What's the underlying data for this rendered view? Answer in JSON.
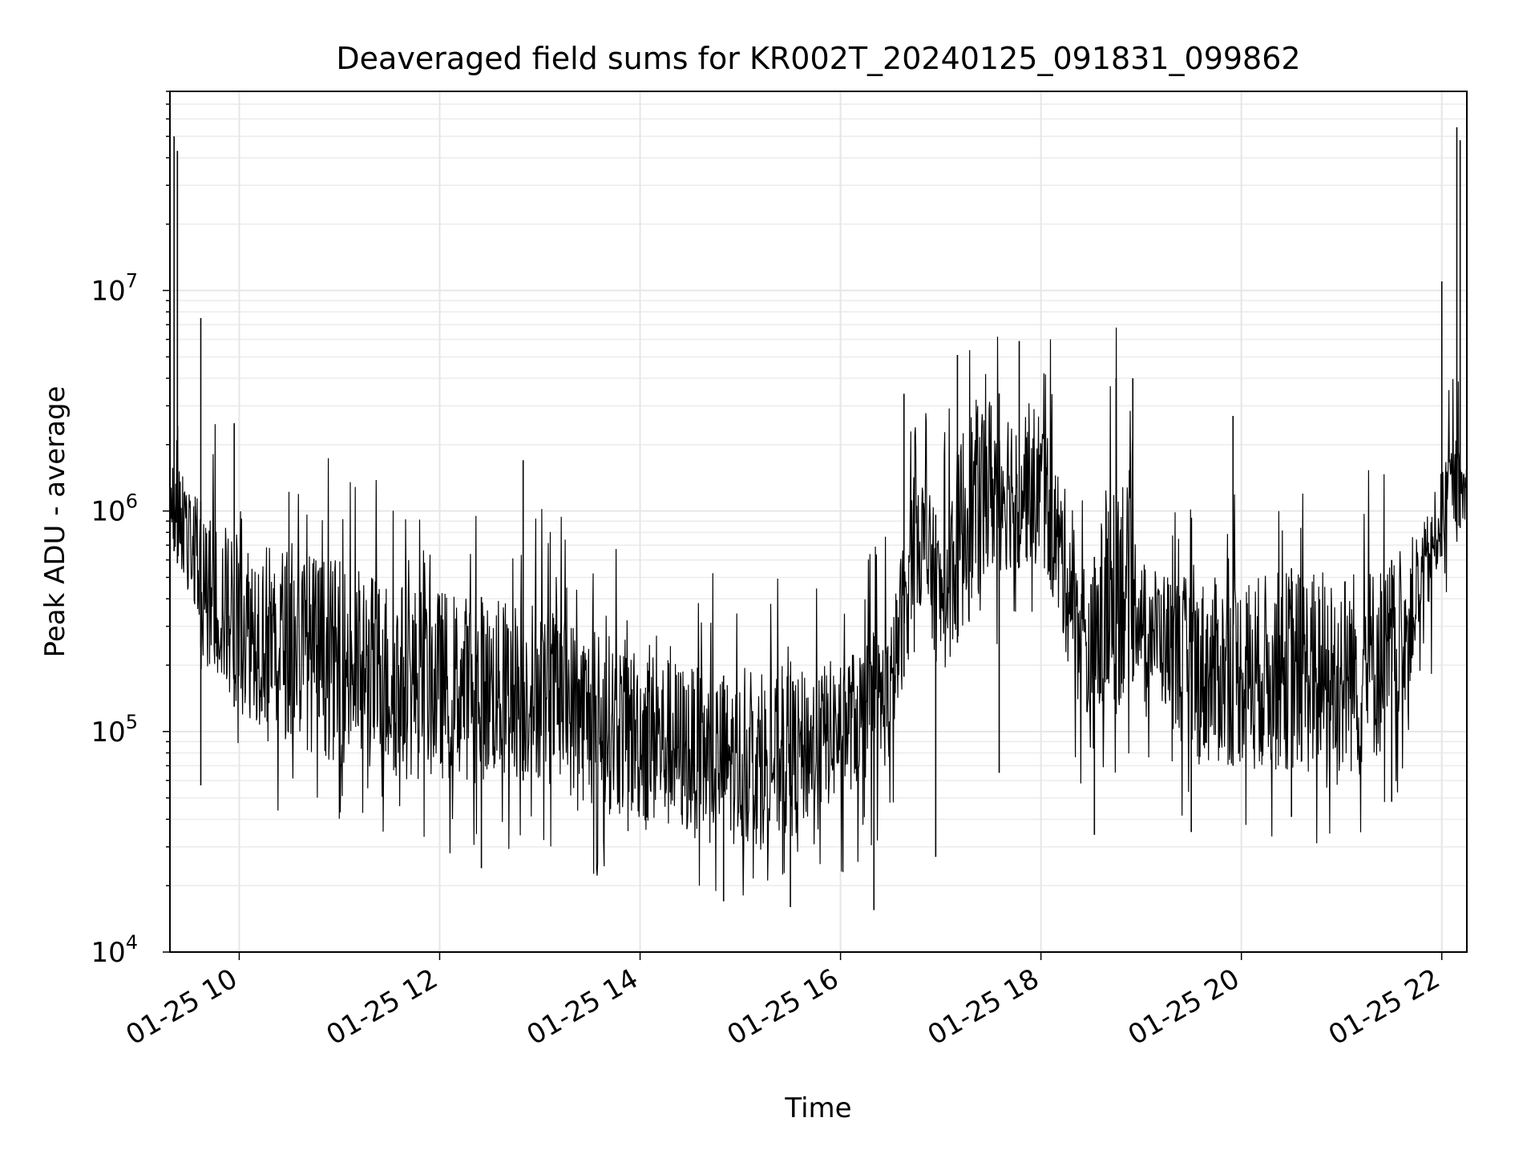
{
  "chart_data": {
    "type": "line",
    "title": "Deaveraged field sums for KR002T_20240125_091831_099862",
    "xlabel": "Time",
    "ylabel": "Peak ADU - average",
    "x_range": [
      "2024-01-25T09:18:31",
      "2024-01-25T22:15:00"
    ],
    "y_range": [
      10000,
      80000000
    ],
    "y_scale": "log",
    "grid": true,
    "line_color": "#000000",
    "x_ticks": [
      {
        "t": "2024-01-25T10:00",
        "label": "01-25 10"
      },
      {
        "t": "2024-01-25T12:00",
        "label": "01-25 12"
      },
      {
        "t": "2024-01-25T14:00",
        "label": "01-25 14"
      },
      {
        "t": "2024-01-25T16:00",
        "label": "01-25 16"
      },
      {
        "t": "2024-01-25T18:00",
        "label": "01-25 18"
      },
      {
        "t": "2024-01-25T20:00",
        "label": "01-25 20"
      },
      {
        "t": "2024-01-25T22:00",
        "label": "01-25 22"
      }
    ],
    "y_ticks": [
      {
        "value": 10000,
        "base": "10",
        "exp": "4"
      },
      {
        "value": 100000,
        "base": "10",
        "exp": "5"
      },
      {
        "value": 1000000,
        "base": "10",
        "exp": "6"
      },
      {
        "value": 10000000,
        "base": "10",
        "exp": "7"
      }
    ],
    "envelope": {
      "t": [
        "2024-01-25T09:20",
        "2024-01-25T09:40",
        "2024-01-25T10:00",
        "2024-01-25T10:30",
        "2024-01-25T11:00",
        "2024-01-25T11:30",
        "2024-01-25T12:00",
        "2024-01-25T12:30",
        "2024-01-25T13:00",
        "2024-01-25T13:30",
        "2024-01-25T14:00",
        "2024-01-25T14:30",
        "2024-01-25T15:00",
        "2024-01-25T15:30",
        "2024-01-25T16:00",
        "2024-01-25T16:30",
        "2024-01-25T16:45",
        "2024-01-25T17:00",
        "2024-01-25T17:15",
        "2024-01-25T17:30",
        "2024-01-25T18:00",
        "2024-01-25T18:30",
        "2024-01-25T18:45",
        "2024-01-25T19:00",
        "2024-01-25T19:30",
        "2024-01-25T20:00",
        "2024-01-25T20:30",
        "2024-01-25T21:00",
        "2024-01-25T21:30",
        "2024-01-25T21:50",
        "2024-01-25T22:05",
        "2024-01-25T22:15"
      ],
      "low": [
        700000,
        200000,
        120000,
        90000,
        70000,
        60000,
        60000,
        60000,
        60000,
        45000,
        38000,
        33000,
        30000,
        32000,
        50000,
        70000,
        400000,
        180000,
        300000,
        500000,
        600000,
        80000,
        120000,
        200000,
        70000,
        70000,
        65000,
        60000,
        80000,
        300000,
        900000,
        800000
      ],
      "high": [
        2000000,
        1000000,
        800000,
        700000,
        600000,
        500000,
        450000,
        400000,
        400000,
        300000,
        250000,
        200000,
        170000,
        180000,
        220000,
        300000,
        2000000,
        800000,
        3000000,
        3500000,
        3000000,
        500000,
        2500000,
        600000,
        500000,
        500000,
        550000,
        550000,
        600000,
        900000,
        2000000,
        1800000
      ]
    },
    "spikes": [
      {
        "t": "2024-01-25T09:21",
        "value": 50000000
      },
      {
        "t": "2024-01-25T09:23",
        "value": 43000000
      },
      {
        "t": "2024-01-25T09:37",
        "value": 7500000
      },
      {
        "t": "2024-01-25T09:57",
        "value": 2500000
      },
      {
        "t": "2024-01-25T12:50",
        "value": 1700000
      },
      {
        "t": "2024-01-25T16:38",
        "value": 3400000
      },
      {
        "t": "2024-01-25T17:10",
        "value": 5100000
      },
      {
        "t": "2024-01-25T17:47",
        "value": 5900000
      },
      {
        "t": "2024-01-25T18:45",
        "value": 4000000
      },
      {
        "t": "2024-01-25T18:55",
        "value": 4000000
      },
      {
        "t": "2024-01-25T19:55",
        "value": 2700000
      },
      {
        "t": "2024-01-25T22:00",
        "value": 11000000
      },
      {
        "t": "2024-01-25T22:09",
        "value": 55000000
      },
      {
        "t": "2024-01-25T22:11",
        "value": 48000000
      }
    ],
    "dips": [
      {
        "t": "2024-01-25T09:37",
        "value": 57000
      },
      {
        "t": "2024-01-25T12:25",
        "value": 24000
      },
      {
        "t": "2024-01-25T14:50",
        "value": 17000
      },
      {
        "t": "2024-01-25T15:30",
        "value": 16000
      },
      {
        "t": "2024-01-25T16:20",
        "value": 15500
      },
      {
        "t": "2024-01-25T16:57",
        "value": 27000
      },
      {
        "t": "2024-01-25T17:35",
        "value": 65000
      },
      {
        "t": "2024-01-25T18:32",
        "value": 34000
      },
      {
        "t": "2024-01-25T19:30",
        "value": 35000
      },
      {
        "t": "2024-01-25T20:30",
        "value": 41000
      },
      {
        "t": "2024-01-25T21:30",
        "value": 48000
      }
    ]
  }
}
